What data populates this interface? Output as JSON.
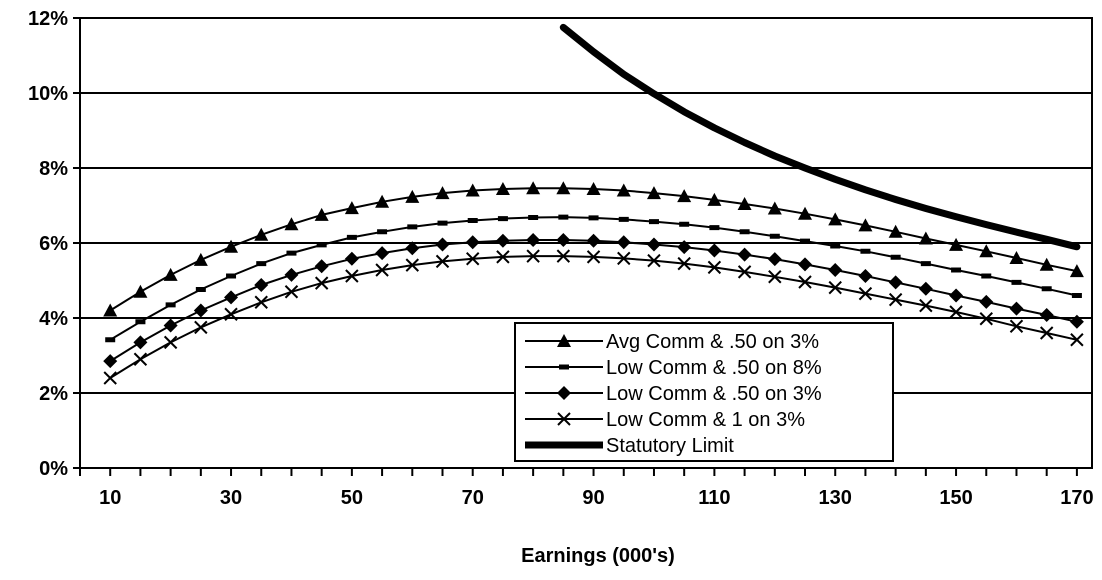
{
  "chart_data": {
    "type": "line",
    "xlabel": "Earnings (000's)",
    "ylabel": "",
    "xlim": [
      10,
      170
    ],
    "ylim": [
      0,
      12
    ],
    "x_ticks": [
      10,
      30,
      50,
      70,
      90,
      110,
      130,
      150,
      170
    ],
    "y_ticks": [
      0,
      2,
      4,
      6,
      8,
      10,
      12
    ],
    "y_tick_labels": [
      "0%",
      "2%",
      "4%",
      "6%",
      "8%",
      "10%",
      "12%"
    ],
    "grid": "horizontal",
    "legend_position": "lower-right",
    "series": [
      {
        "name": "Avg Comm & .50 on 3%",
        "marker": "triangle",
        "x": [
          10,
          15,
          20,
          25,
          30,
          35,
          40,
          45,
          50,
          55,
          60,
          65,
          70,
          75,
          80,
          85,
          90,
          95,
          100,
          105,
          110,
          115,
          120,
          125,
          130,
          135,
          140,
          145,
          150,
          155,
          160,
          165,
          170
        ],
        "values": [
          4.2,
          4.7,
          5.15,
          5.55,
          5.9,
          6.22,
          6.5,
          6.75,
          6.93,
          7.1,
          7.23,
          7.33,
          7.4,
          7.44,
          7.46,
          7.46,
          7.44,
          7.4,
          7.33,
          7.25,
          7.15,
          7.04,
          6.92,
          6.78,
          6.63,
          6.47,
          6.3,
          6.12,
          5.95,
          5.78,
          5.6,
          5.42,
          5.25
        ]
      },
      {
        "name": "Low Comm & .50 on 8%",
        "marker": "dash",
        "x": [
          10,
          15,
          20,
          25,
          30,
          35,
          40,
          45,
          50,
          55,
          60,
          65,
          70,
          75,
          80,
          85,
          90,
          95,
          100,
          105,
          110,
          115,
          120,
          125,
          130,
          135,
          140,
          145,
          150,
          155,
          160,
          165,
          170
        ],
        "values": [
          3.42,
          3.9,
          4.35,
          4.76,
          5.12,
          5.45,
          5.73,
          5.95,
          6.15,
          6.3,
          6.43,
          6.53,
          6.6,
          6.65,
          6.68,
          6.69,
          6.67,
          6.63,
          6.57,
          6.5,
          6.41,
          6.3,
          6.18,
          6.05,
          5.92,
          5.78,
          5.62,
          5.45,
          5.28,
          5.12,
          4.95,
          4.78,
          4.6
        ]
      },
      {
        "name": "Low Comm & .50 on 3%",
        "marker": "diamond",
        "x": [
          10,
          15,
          20,
          25,
          30,
          35,
          40,
          45,
          50,
          55,
          60,
          65,
          70,
          75,
          80,
          85,
          90,
          95,
          100,
          105,
          110,
          115,
          120,
          125,
          130,
          135,
          140,
          145,
          150,
          155,
          160,
          165,
          170
        ],
        "values": [
          2.85,
          3.35,
          3.8,
          4.2,
          4.55,
          4.88,
          5.15,
          5.38,
          5.58,
          5.73,
          5.86,
          5.96,
          6.02,
          6.06,
          6.08,
          6.08,
          6.06,
          6.02,
          5.96,
          5.89,
          5.8,
          5.69,
          5.57,
          5.43,
          5.28,
          5.12,
          4.95,
          4.78,
          4.6,
          4.43,
          4.25,
          4.08,
          3.9
        ]
      },
      {
        "name": "Low Comm & 1 on 3%",
        "marker": "x",
        "x": [
          10,
          15,
          20,
          25,
          30,
          35,
          40,
          45,
          50,
          55,
          60,
          65,
          70,
          75,
          80,
          85,
          90,
          95,
          100,
          105,
          110,
          115,
          120,
          125,
          130,
          135,
          140,
          145,
          150,
          155,
          160,
          165,
          170
        ],
        "values": [
          2.4,
          2.9,
          3.35,
          3.75,
          4.1,
          4.42,
          4.7,
          4.93,
          5.12,
          5.28,
          5.41,
          5.51,
          5.58,
          5.63,
          5.65,
          5.65,
          5.63,
          5.59,
          5.53,
          5.45,
          5.35,
          5.23,
          5.1,
          4.96,
          4.81,
          4.65,
          4.49,
          4.33,
          4.16,
          3.98,
          3.78,
          3.6,
          3.42
        ]
      },
      {
        "name": "Statutory Limit",
        "marker": "none",
        "x": [
          85,
          90,
          95,
          100,
          105,
          110,
          115,
          120,
          125,
          130,
          135,
          140,
          145,
          150,
          155,
          160,
          165,
          170
        ],
        "values": [
          11.75,
          11.1,
          10.5,
          9.98,
          9.5,
          9.07,
          8.68,
          8.32,
          8.0,
          7.7,
          7.42,
          7.16,
          6.92,
          6.7,
          6.49,
          6.29,
          6.1,
          5.9
        ]
      }
    ]
  }
}
